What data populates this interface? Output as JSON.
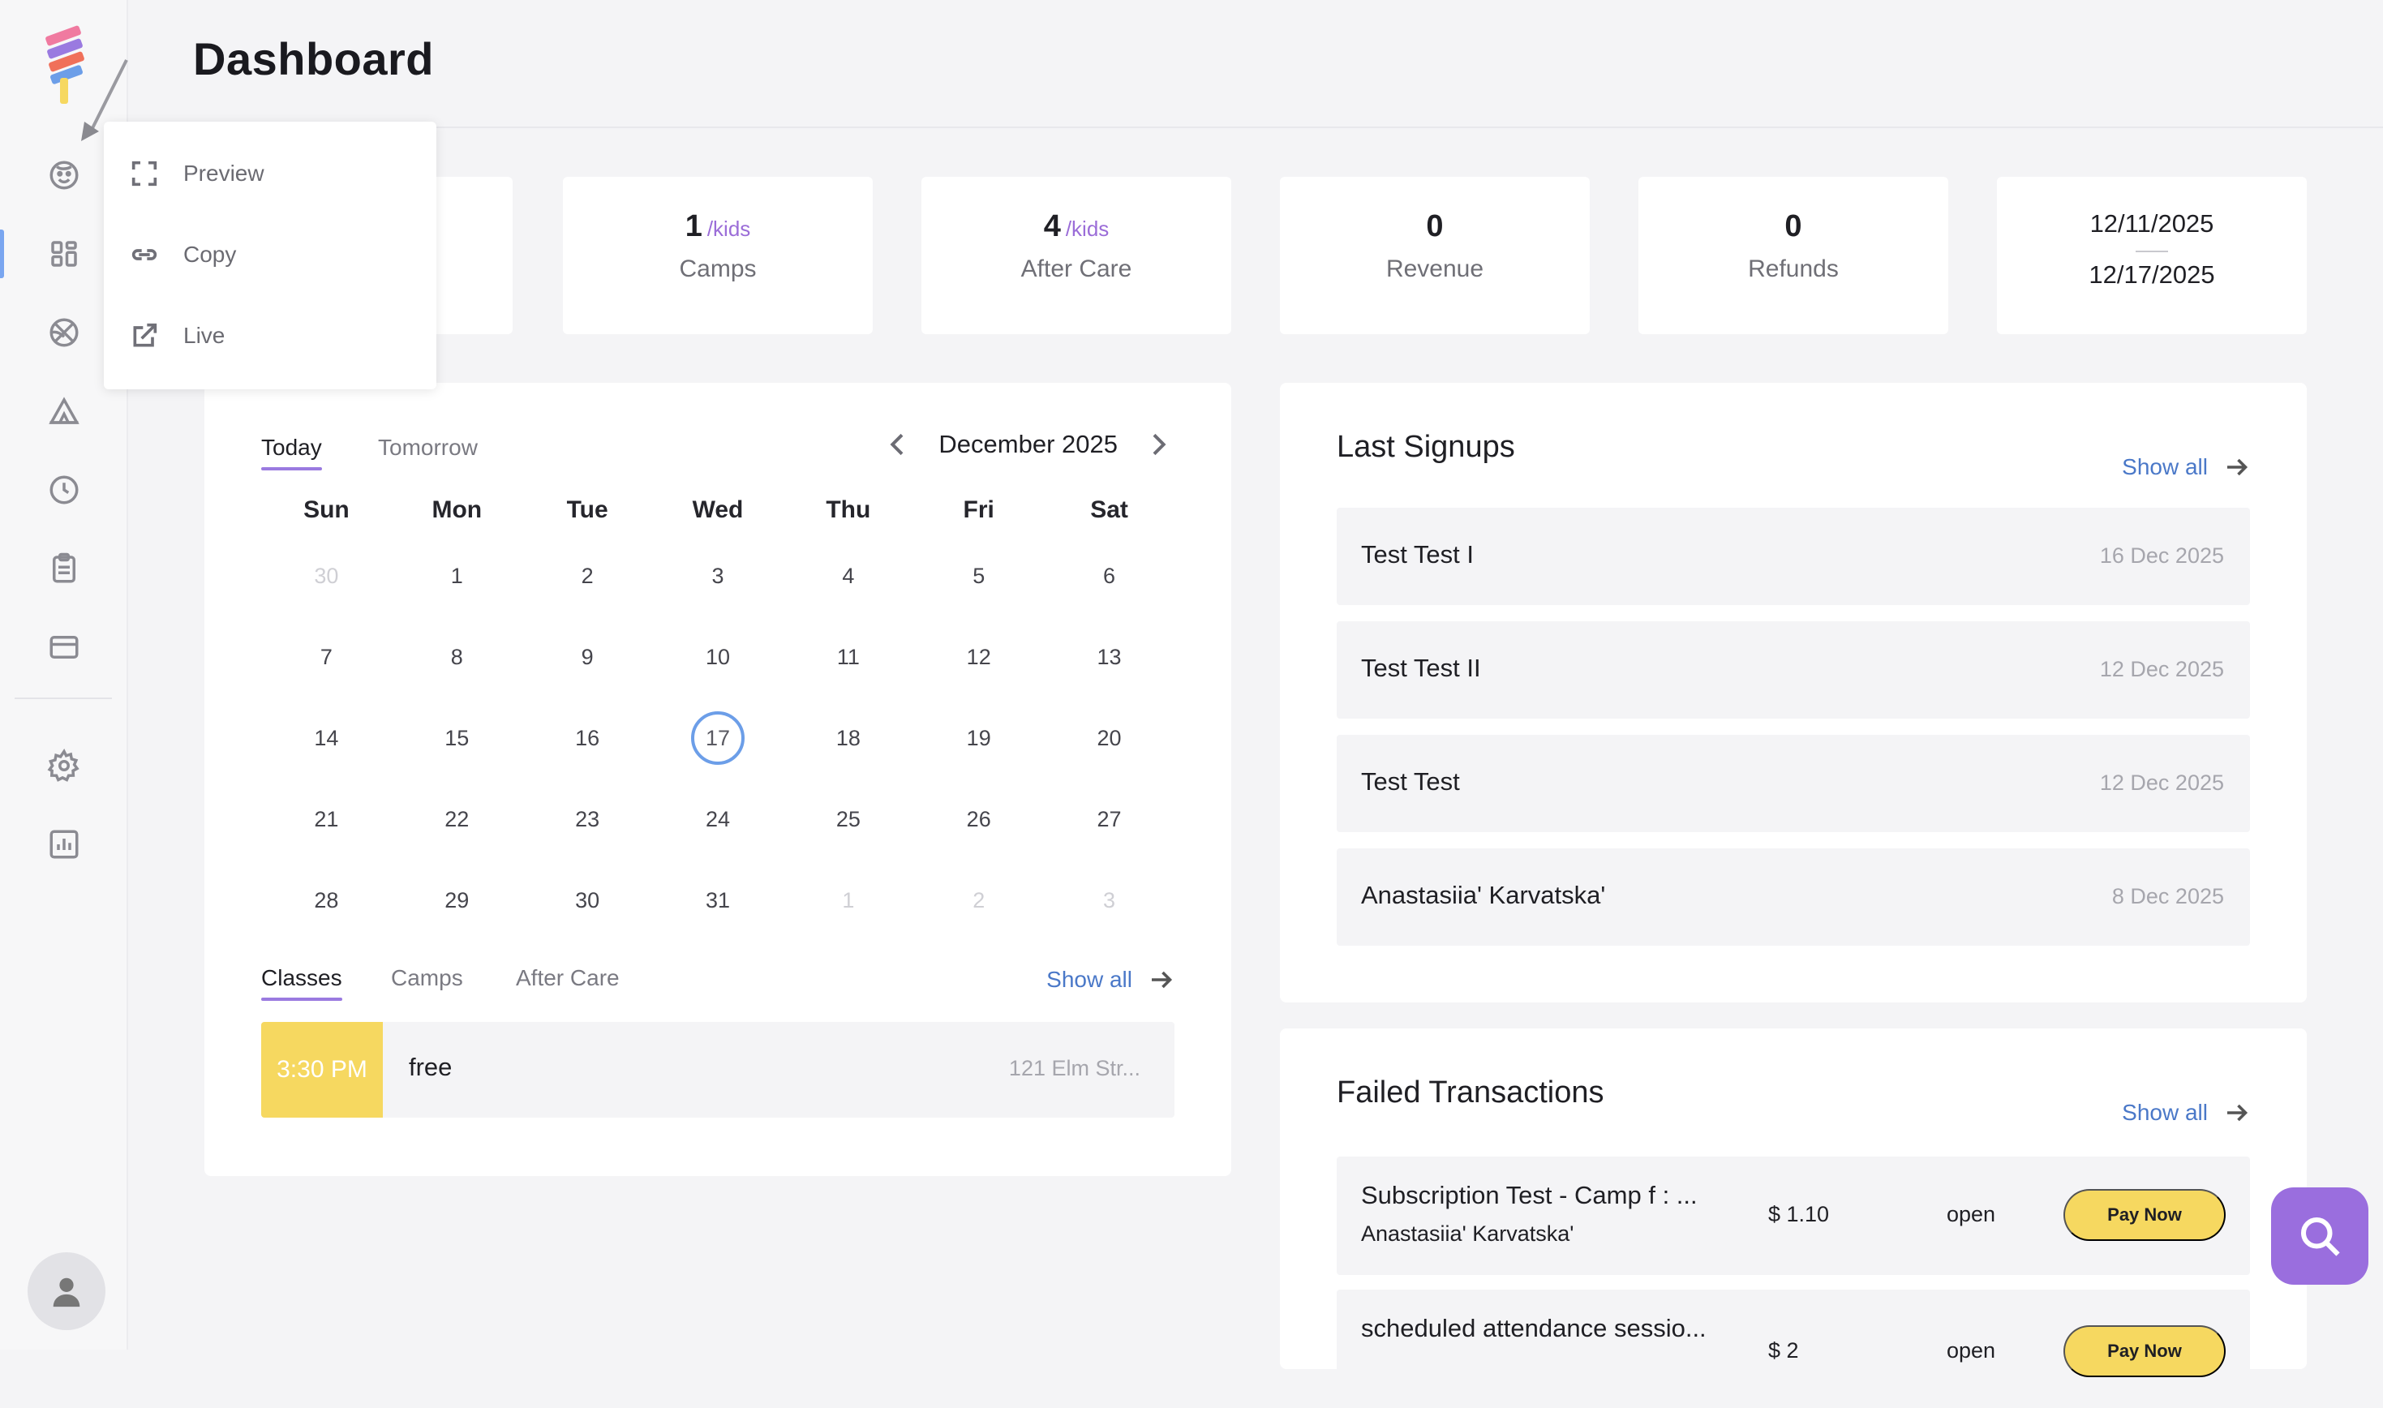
{
  "header": {
    "title": "Dashboard"
  },
  "colors": {
    "accent": "#9a7ae0",
    "link": "#4a78c8",
    "highlight": "#f6d860",
    "fab": "#9a6ede",
    "today_ring": "#6c9ee8"
  },
  "sidebar": {
    "items": [
      {
        "icon": "face-icon"
      },
      {
        "icon": "dashboard-icon"
      },
      {
        "icon": "basketball-icon"
      },
      {
        "icon": "tent-icon"
      },
      {
        "icon": "clock-icon"
      },
      {
        "icon": "clipboard-icon"
      },
      {
        "icon": "credit-card-icon"
      },
      {
        "icon": "gear-icon"
      },
      {
        "icon": "report-icon"
      }
    ]
  },
  "popup": {
    "items": [
      {
        "label": "Preview",
        "icon": "expand-icon"
      },
      {
        "label": "Copy",
        "icon": "link-icon"
      },
      {
        "label": "Live",
        "icon": "external-link-icon"
      }
    ]
  },
  "stats": [
    {
      "value": "1",
      "unit": "/kids",
      "label": "Camps"
    },
    {
      "value": "4",
      "unit": "/kids",
      "label": "After Care"
    },
    {
      "value": "0",
      "label": "Revenue"
    },
    {
      "value": "0",
      "label": "Refunds"
    }
  ],
  "date_range": {
    "start": "12/11/2025",
    "end": "12/17/2025"
  },
  "calendar": {
    "tabs": [
      "Today",
      "Tomorrow"
    ],
    "active_tab": "Today",
    "month": "December 2025",
    "weekdays": [
      "Sun",
      "Mon",
      "Tue",
      "Wed",
      "Thu",
      "Fri",
      "Sat"
    ],
    "days": [
      "30",
      "1",
      "2",
      "3",
      "4",
      "5",
      "6",
      "7",
      "8",
      "9",
      "10",
      "11",
      "12",
      "13",
      "14",
      "15",
      "16",
      "17",
      "18",
      "19",
      "20",
      "21",
      "22",
      "23",
      "24",
      "25",
      "26",
      "27",
      "28",
      "29",
      "30",
      "31",
      "1",
      "2",
      "3"
    ],
    "muted_indices": [
      0,
      32,
      33,
      34
    ],
    "today_index": 17,
    "event_tabs": [
      "Classes",
      "Camps",
      "After Care"
    ],
    "active_event_tab": "Classes",
    "show_all": "Show all",
    "event": {
      "time": "3:30 PM",
      "title": "free",
      "location": "121 Elm Str..."
    }
  },
  "signups": {
    "title": "Last Signups",
    "show_all": "Show all",
    "rows": [
      {
        "name": "Test Test I",
        "date": "16 Dec 2025"
      },
      {
        "name": "Test Test II",
        "date": "12 Dec 2025"
      },
      {
        "name": "Test Test",
        "date": "12 Dec 2025"
      },
      {
        "name": "Anastasiia' Karvatska'",
        "date": "8 Dec 2025"
      }
    ]
  },
  "failed": {
    "title": "Failed Transactions",
    "show_all": "Show all",
    "rows": [
      {
        "title": "Subscription Test - Camp f : ...",
        "subtitle": "Anastasiia' Karvatska'",
        "amount": "$ 1.10",
        "status": "open",
        "button": "Pay Now"
      },
      {
        "title": "scheduled attendance sessio...",
        "subtitle": "",
        "amount": "$ 2",
        "status": "open",
        "button": "Pay Now"
      }
    ]
  }
}
